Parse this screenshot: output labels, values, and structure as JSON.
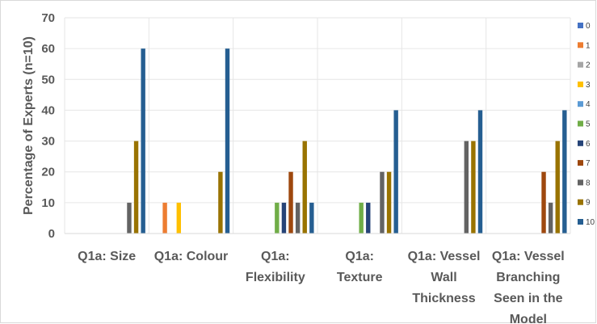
{
  "chart_data": {
    "type": "bar",
    "ylabel": "Percentage of Experts (n=10)",
    "ylim": [
      0,
      70
    ],
    "yticks": [
      0,
      10,
      20,
      30,
      40,
      50,
      60,
      70
    ],
    "grid": true,
    "legend_position": "right",
    "categories": [
      [
        "Q1a: Size"
      ],
      [
        "Q1a: Colour"
      ],
      [
        "Q1a:",
        "Flexibility"
      ],
      [
        "Q1a:",
        "Texture"
      ],
      [
        "Q1a: Vessel",
        "Wall",
        "Thickness"
      ],
      [
        "Q1a: Vessel",
        "Branching",
        "Seen in the",
        "Model"
      ]
    ],
    "series": [
      {
        "name": "0",
        "color": "#4472C4",
        "values": [
          0,
          0,
          0,
          0,
          0,
          0
        ]
      },
      {
        "name": "1",
        "color": "#ED7D31",
        "values": [
          0,
          10,
          0,
          0,
          0,
          0
        ]
      },
      {
        "name": "2",
        "color": "#A5A5A5",
        "values": [
          0,
          0,
          0,
          0,
          0,
          0
        ]
      },
      {
        "name": "3",
        "color": "#FFC000",
        "values": [
          0,
          10,
          0,
          0,
          0,
          0
        ]
      },
      {
        "name": "4",
        "color": "#5B9BD5",
        "values": [
          0,
          0,
          0,
          0,
          0,
          0
        ]
      },
      {
        "name": "5",
        "color": "#70AD47",
        "values": [
          0,
          0,
          10,
          10,
          0,
          0
        ]
      },
      {
        "name": "6",
        "color": "#264478",
        "values": [
          0,
          0,
          10,
          10,
          0,
          0
        ]
      },
      {
        "name": "7",
        "color": "#9E480E",
        "values": [
          0,
          0,
          20,
          0,
          0,
          20
        ]
      },
      {
        "name": "8",
        "color": "#636363",
        "values": [
          10,
          0,
          10,
          20,
          30,
          10
        ]
      },
      {
        "name": "9",
        "color": "#997300",
        "values": [
          30,
          20,
          30,
          20,
          30,
          30
        ]
      },
      {
        "name": "10",
        "color": "#255E91",
        "values": [
          60,
          60,
          10,
          40,
          40,
          40
        ]
      }
    ]
  }
}
